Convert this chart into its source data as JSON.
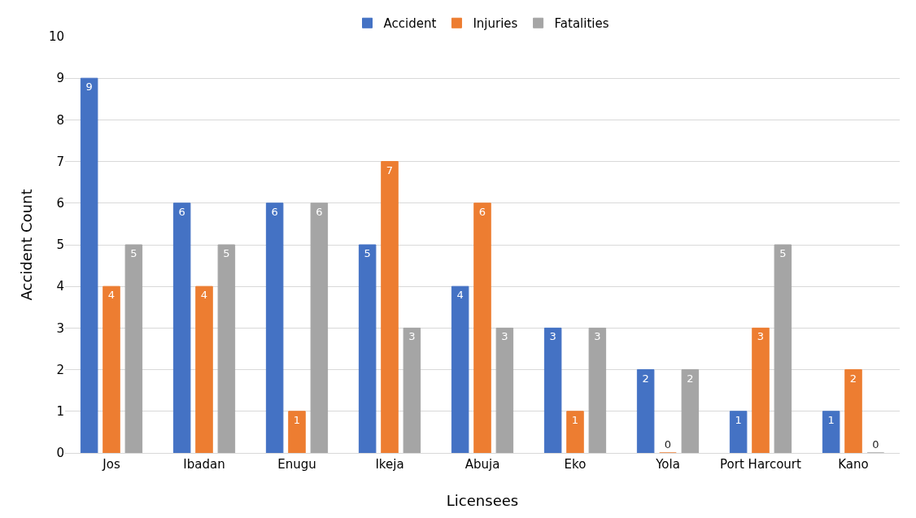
{
  "chart_data": {
    "type": "bar",
    "xlabel": "Licensees",
    "ylabel": "Accident Count",
    "categories": [
      "Jos",
      "Ibadan",
      "Enugu",
      "Ikeja",
      "Abuja",
      "Eko",
      "Yola",
      "Port Harcourt",
      "Kano"
    ],
    "series": [
      {
        "name": "Accident",
        "color": "#4472c4",
        "values": [
          9,
          6,
          6,
          5,
          4,
          3,
          2,
          1,
          1
        ]
      },
      {
        "name": "Injuries",
        "color": "#ed7d31",
        "values": [
          4,
          4,
          1,
          7,
          6,
          1,
          0,
          3,
          2
        ]
      },
      {
        "name": "Fatalities",
        "color": "#a5a5a5",
        "values": [
          5,
          5,
          6,
          3,
          3,
          3,
          2,
          5,
          0
        ]
      }
    ],
    "ylim": [
      0,
      10
    ],
    "yticks": [
      0,
      1,
      2,
      3,
      4,
      5,
      6,
      7,
      8,
      9,
      10
    ],
    "grid": "y",
    "legend": "top",
    "data_labels": true
  }
}
